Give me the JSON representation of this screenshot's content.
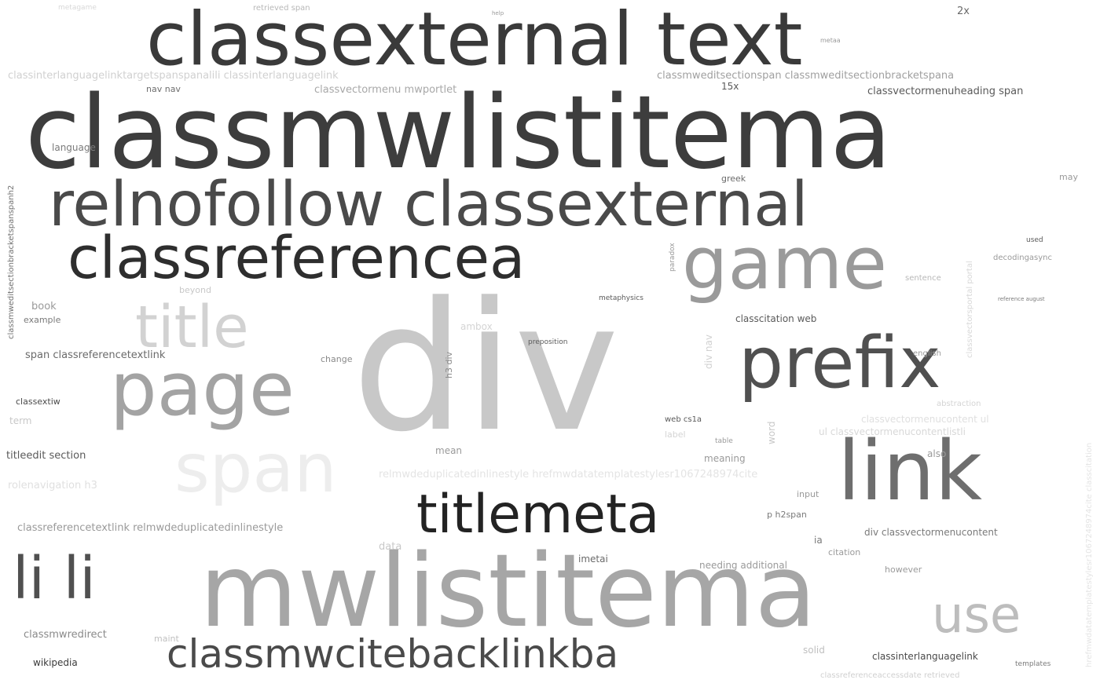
{
  "words": [
    {
      "text": "classmwlistitema",
      "color": "#3d3d3d"
    },
    {
      "text": "div",
      "color": "#c8c8c8"
    },
    {
      "text": "mwlistitema",
      "color": "#a6a6a6"
    },
    {
      "text": "classexternal text",
      "color": "#3a3a3a"
    },
    {
      "text": "relnofollow classexternal",
      "color": "#4a4a4a"
    },
    {
      "text": "classreferencea",
      "color": "#2e2e2e"
    },
    {
      "text": "game",
      "color": "#9a9a9a"
    },
    {
      "text": "prefix",
      "color": "#505050"
    },
    {
      "text": "page",
      "color": "#a3a3a3"
    },
    {
      "text": "title",
      "color": "#d2d2d2"
    },
    {
      "text": "span",
      "color": "#ededed"
    },
    {
      "text": "link",
      "color": "#6e6e6e"
    },
    {
      "text": "titlemeta",
      "color": "#232323"
    },
    {
      "text": "li li",
      "color": "#505050"
    },
    {
      "text": "use",
      "color": "#bdbdbd"
    },
    {
      "text": "classmwcitebacklinkba",
      "color": "#4a4a4a"
    },
    {
      "text": "classinterlanguagelinktargetspanspanalili classinterlanguagelink",
      "color": "#d0d0d0"
    },
    {
      "text": "classmweditsectionspan classmweditsectionbracketspana",
      "color": "#a0a0a0"
    },
    {
      "text": "classvectormenu mwportlet",
      "color": "#a8a8a8"
    },
    {
      "text": "classvectormenuheading span",
      "color": "#5a5a5a"
    },
    {
      "text": "nav nav",
      "color": "#6e6e6e"
    },
    {
      "text": "15x",
      "color": "#5a5a5a"
    },
    {
      "text": "2x",
      "color": "#6a6a6a"
    },
    {
      "text": "language",
      "color": "#7a7a7a"
    },
    {
      "text": "classmweditsectionbracketspanspanh2",
      "color": "#707070"
    },
    {
      "text": "book",
      "color": "#9a9a9a"
    },
    {
      "text": "example",
      "color": "#7a7a7a"
    },
    {
      "text": "span classreferencetextlink",
      "color": "#6a6a6a"
    },
    {
      "text": "classextiw",
      "color": "#4a4a4a"
    },
    {
      "text": "term",
      "color": "#c8c8c8"
    },
    {
      "text": "titleedit section",
      "color": "#5a5a5a"
    },
    {
      "text": "rolenavigation h3",
      "color": "#e0e0e0"
    },
    {
      "text": "classreferencetextlink relmwdeduplicatedinlinestyle",
      "color": "#9a9a9a"
    },
    {
      "text": "classmwredirect",
      "color": "#8a8a8a"
    },
    {
      "text": "wikipedia",
      "color": "#3a3a3a"
    },
    {
      "text": "maint",
      "color": "#c0c0c0"
    },
    {
      "text": "beyond",
      "color": "#c8c8c8"
    },
    {
      "text": "change",
      "color": "#8a8a8a"
    },
    {
      "text": "h3 div",
      "color": "#8a8a8a"
    },
    {
      "text": "ambox",
      "color": "#d4d4d4"
    },
    {
      "text": "preposition",
      "color": "#5a5a5a"
    },
    {
      "text": "metaphysics",
      "color": "#5a5a5a"
    },
    {
      "text": "paradox",
      "color": "#9a9a9a"
    },
    {
      "text": "greek",
      "color": "#6a6a6a"
    },
    {
      "text": "classcitation web",
      "color": "#5a5a5a"
    },
    {
      "text": "div nav",
      "color": "#d0d0d0"
    },
    {
      "text": "web cs1a",
      "color": "#5a5a5a"
    },
    {
      "text": "label",
      "color": "#d4d4d4"
    },
    {
      "text": "table",
      "color": "#9a9a9a"
    },
    {
      "text": "mean",
      "color": "#9a9a9a"
    },
    {
      "text": "meaning",
      "color": "#9a9a9a"
    },
    {
      "text": "word",
      "color": "#c8c8c8"
    },
    {
      "text": "relmwdeduplicatedinlinestyle hrefmwdatatemplatestylesr1067248974cite",
      "color": "#e4e4e4"
    },
    {
      "text": "data",
      "color": "#c8c8c8"
    },
    {
      "text": "imetai",
      "color": "#6a6a6a"
    },
    {
      "text": "needing additional",
      "color": "#9a9a9a"
    },
    {
      "text": "citation",
      "color": "#9a9a9a"
    },
    {
      "text": "ia",
      "color": "#7a7a7a"
    },
    {
      "text": "p h2span",
      "color": "#7a7a7a"
    },
    {
      "text": "input",
      "color": "#9a9a9a"
    },
    {
      "text": "also",
      "color": "#9a9a9a"
    },
    {
      "text": "div classvectormenucontent",
      "color": "#7a7a7a"
    },
    {
      "text": "however",
      "color": "#9a9a9a"
    },
    {
      "text": "solid",
      "color": "#c0c0c0"
    },
    {
      "text": "classinterlanguagelink",
      "color": "#4a4a4a"
    },
    {
      "text": "templates",
      "color": "#7a7a7a"
    },
    {
      "text": "classreferenceaccessdate retrieved",
      "color": "#d0d0d0"
    },
    {
      "text": "used",
      "color": "#5a5a5a"
    },
    {
      "text": "decodingasync",
      "color": "#9a9a9a"
    },
    {
      "text": "sentence",
      "color": "#b8b8b8"
    },
    {
      "text": "english",
      "color": "#9a9a9a"
    },
    {
      "text": "abstraction",
      "color": "#d4d4d4"
    },
    {
      "text": "classvectormenucontent ul",
      "color": "#e0e0e0"
    },
    {
      "text": "ul classvectormenucontentlistli",
      "color": "#d8d8d8"
    },
    {
      "text": "may",
      "color": "#9a9a9a"
    },
    {
      "text": "retrieved span",
      "color": "#b8b8b8"
    },
    {
      "text": "metagame",
      "color": "#d8d8d8"
    },
    {
      "text": "classvectorsportal portal",
      "color": "#d8d8d8"
    },
    {
      "text": "hrefmwdatatemplatestylesr1067248974cite classcitation",
      "color": "#e4e4e4"
    },
    {
      "text": "metaa",
      "color": "#9a9a9a"
    },
    {
      "text": "help",
      "color": "#9a9a9a"
    },
    {
      "text": "reference august",
      "color": "#7a7a7a"
    }
  ]
}
